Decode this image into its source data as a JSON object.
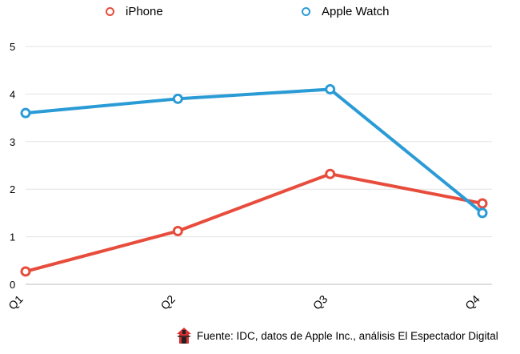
{
  "chart_data": {
    "type": "line",
    "categories": [
      "Q1",
      "Q2",
      "Q3",
      "Q4"
    ],
    "series": [
      {
        "name": "iPhone",
        "values": [
          0.27,
          1.12,
          2.32,
          1.7
        ],
        "color": "#e74c3c"
      },
      {
        "name": "Apple Watch",
        "values": [
          3.6,
          3.9,
          4.1,
          1.5
        ],
        "color": "#2b9bd6"
      }
    ],
    "yticks": [
      0,
      1,
      2,
      3,
      4,
      5
    ],
    "ylim": [
      0,
      5
    ],
    "grid": true,
    "legend": "top"
  },
  "footer": {
    "source_text": "Fuente: IDC, datos de Apple Inc., análisis El Espectador Digital",
    "logo_icon": "house-logo-icon"
  }
}
